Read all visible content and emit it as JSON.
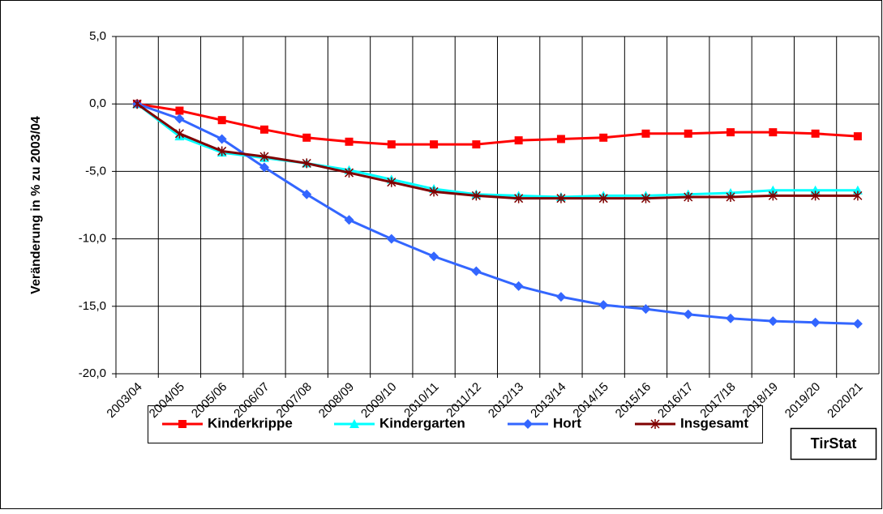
{
  "chart_data": {
    "type": "line",
    "y_label": "Veränderung in % zu 2003/04",
    "categories": [
      "2003/04",
      "2004/05",
      "2005/06",
      "2006/07",
      "2007/08",
      "2008/09",
      "2009/10",
      "2010/11",
      "2011/12",
      "2012/13",
      "2013/14",
      "2014/15",
      "2015/16",
      "2016/17",
      "2017/18",
      "2018/19",
      "2019/20",
      "2020/21"
    ],
    "series": [
      {
        "name": "Kinderkrippe",
        "color": "#ff0000",
        "marker": "square",
        "values": [
          0,
          -0.5,
          -1.2,
          -1.9,
          -2.5,
          -2.8,
          -3.0,
          -3.0,
          -3.0,
          -2.7,
          -2.6,
          -2.5,
          -2.2,
          -2.2,
          -2.1,
          -2.1,
          -2.2,
          -2.4
        ]
      },
      {
        "name": "Kindergarten",
        "color": "#00ffff",
        "marker": "triangle",
        "values": [
          0,
          -2.4,
          -3.6,
          -4.0,
          -4.4,
          -4.9,
          -5.6,
          -6.3,
          -6.7,
          -6.8,
          -6.9,
          -6.8,
          -6.8,
          -6.7,
          -6.6,
          -6.4,
          -6.4,
          -6.4
        ]
      },
      {
        "name": "Hort",
        "color": "#3366ff",
        "marker": "diamond",
        "values": [
          0,
          -1.1,
          -2.6,
          -4.7,
          -6.7,
          -8.6,
          -10.0,
          -11.3,
          -12.4,
          -13.5,
          -14.3,
          -14.9,
          -15.2,
          -15.6,
          -15.9,
          -16.1,
          -16.2,
          -16.3
        ]
      },
      {
        "name": "Insgesamt",
        "color": "#800000",
        "marker": "star",
        "values": [
          0,
          -2.2,
          -3.5,
          -3.9,
          -4.4,
          -5.1,
          -5.8,
          -6.5,
          -6.8,
          -7.0,
          -7.0,
          -7.0,
          -7.0,
          -6.9,
          -6.9,
          -6.8,
          -6.8,
          -6.8
        ]
      }
    ],
    "ylim": [
      -20,
      5
    ],
    "yticks": [
      {
        "value": -20,
        "label": "-20,0"
      },
      {
        "value": -15,
        "label": "-15,0"
      },
      {
        "value": -10,
        "label": "-10,0"
      },
      {
        "value": -5,
        "label": "-5,0"
      },
      {
        "value": 0,
        "label": "0,0"
      },
      {
        "value": 5,
        "label": "5,0"
      }
    ],
    "grid": true,
    "legend": "bottom",
    "source": "TirStat"
  }
}
